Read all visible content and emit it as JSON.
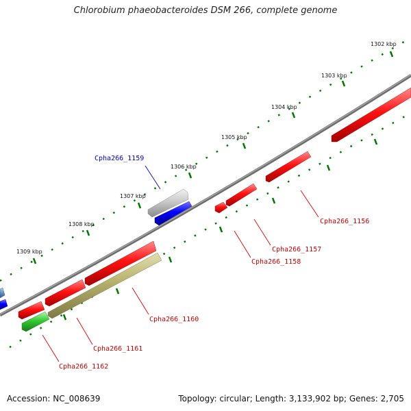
{
  "title": "Chlorobium phaeobacteroides DSM 266, complete genome",
  "footer": {
    "accession": "Accession: NC_008639",
    "topology": "Topology: circular; Length: 3,133,902 bp; Genes: 2,705"
  },
  "colors": {
    "forward": "#ff0000",
    "reverse_blue": "#0000ff",
    "reverse_green": "#33cc33",
    "reverse_olive": "#b5b06a",
    "light_blue": "#6699cc",
    "grey_feature": "#c8c8c8",
    "backbone": "#808080",
    "tick": "#007700",
    "label_forward": "#cc0000",
    "label_reverse": "#0000cc"
  },
  "kbp_labels": [
    "1302 kbp",
    "1303 kbp",
    "1304 kbp",
    "1305 kbp",
    "1306 kbp",
    "1307 kbp",
    "1308 kbp",
    "1309 kbp"
  ],
  "gene_labels": [
    {
      "id": "g1156",
      "text": "Cpha266_1156",
      "strand": "forward"
    },
    {
      "id": "g1157",
      "text": "Cpha266_1157",
      "strand": "forward"
    },
    {
      "id": "g1158",
      "text": "Cpha266_1158",
      "strand": "forward"
    },
    {
      "id": "g1159",
      "text": "Cpha266_1159",
      "strand": "reverse"
    },
    {
      "id": "g1160",
      "text": "Cpha266_1160",
      "strand": "forward"
    },
    {
      "id": "g1161",
      "text": "Cpha266_1161",
      "strand": "forward"
    },
    {
      "id": "g1162",
      "text": "Cpha266_1162",
      "strand": "forward"
    }
  ]
}
